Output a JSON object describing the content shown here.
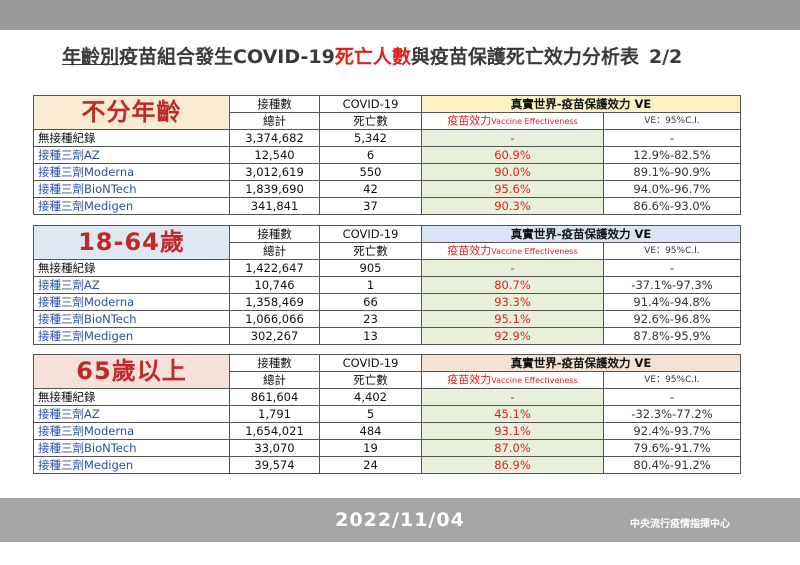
{
  "title": {
    "part1": "年齡別",
    "part2": "疫苗組合發生COVID-19",
    "part3": "死亡人數",
    "part4": "與疫苗保護死亡效力分析表",
    "page": "2/2"
  },
  "headers": {
    "doses": "接種數",
    "doses_total": "總計",
    "covid": "COVID-19",
    "deaths": "死亡數",
    "ve_title": "真實世界-疫苗保護效力 VE",
    "ve_label": "疫苗效力",
    "ve_label_en": "Vaccine Effectiveness",
    "ci_label": "VE：95%C.I."
  },
  "groups": [
    {
      "name": "不分年齡",
      "rows": [
        {
          "label": "無接種紀錄",
          "doses": "3,374,682",
          "deaths": "5,342",
          "ve": "-",
          "ci": "-"
        },
        {
          "label": "接種三劑AZ",
          "doses": "12,540",
          "deaths": "6",
          "ve": "60.9%",
          "ci": "12.9%-82.5%"
        },
        {
          "label": "接種三劑Moderna",
          "doses": "3,012,619",
          "deaths": "550",
          "ve": "90.0%",
          "ci": "89.1%-90.9%"
        },
        {
          "label": "接種三劑BioNTech",
          "doses": "1,839,690",
          "deaths": "42",
          "ve": "95.6%",
          "ci": "94.0%-96.7%"
        },
        {
          "label": "接種三劑Medigen",
          "doses": "341,841",
          "deaths": "37",
          "ve": "90.3%",
          "ci": "86.6%-93.0%"
        }
      ]
    },
    {
      "name": "18-64歲",
      "rows": [
        {
          "label": "無接種紀錄",
          "doses": "1,422,647",
          "deaths": "905",
          "ve": "-",
          "ci": "-"
        },
        {
          "label": "接種三劑AZ",
          "doses": "10,746",
          "deaths": "1",
          "ve": "80.7%",
          "ci": "-37.1%-97.3%"
        },
        {
          "label": "接種三劑Moderna",
          "doses": "1,358,469",
          "deaths": "66",
          "ve": "93.3%",
          "ci": "91.4%-94.8%"
        },
        {
          "label": "接種三劑BioNTech",
          "doses": "1,066,066",
          "deaths": "23",
          "ve": "95.1%",
          "ci": "92.6%-96.8%"
        },
        {
          "label": "接種三劑Medigen",
          "doses": "302,267",
          "deaths": "13",
          "ve": "92.9%",
          "ci": "87.8%-95.9%"
        }
      ]
    },
    {
      "name": "65歲以上",
      "rows": [
        {
          "label": "無接種紀錄",
          "doses": "861,604",
          "deaths": "4,402",
          "ve": "-",
          "ci": "-"
        },
        {
          "label": "接種三劑AZ",
          "doses": "1,791",
          "deaths": "5",
          "ve": "45.1%",
          "ci": "-32.3%-77.2%"
        },
        {
          "label": "接種三劑Moderna",
          "doses": "1,654,021",
          "deaths": "484",
          "ve": "93.1%",
          "ci": "92.4%-93.7%"
        },
        {
          "label": "接種三劑BioNTech",
          "doses": "33,070",
          "deaths": "19",
          "ve": "87.0%",
          "ci": "79.6%-91.7%"
        },
        {
          "label": "接種三劑Medigen",
          "doses": "39,574",
          "deaths": "24",
          "ve": "86.9%",
          "ci": "80.4%-91.2%"
        }
      ]
    }
  ],
  "footer": {
    "date": "2022/11/04",
    "agency": "中央流行疫情指揮中心"
  },
  "colors": {
    "title_accent": "#e0211b",
    "vaccine_label": "#2a4ea8",
    "ve_background": "#e8f0dc",
    "group_label": "#c0282a"
  }
}
